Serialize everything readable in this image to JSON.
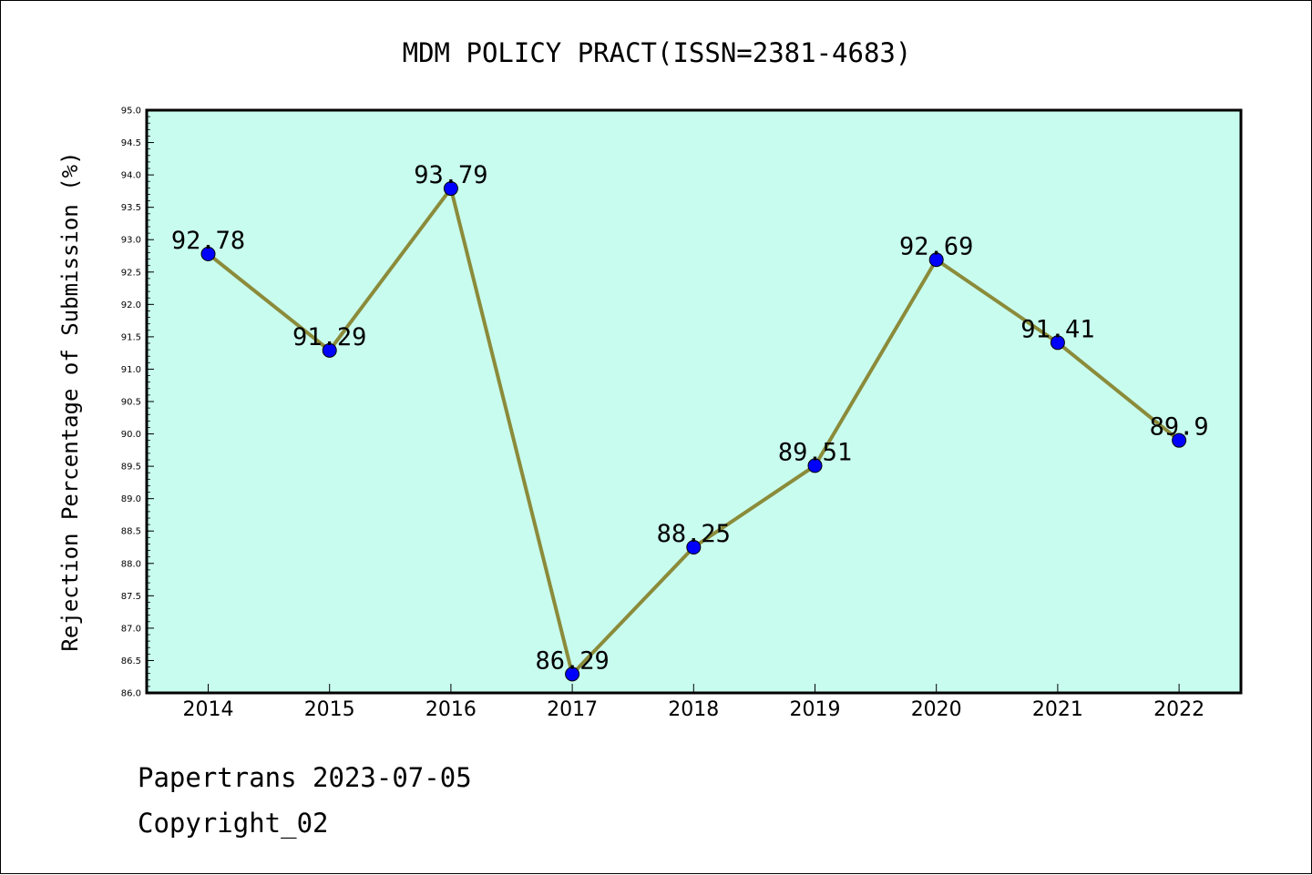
{
  "chart_data": {
    "type": "line",
    "title": "MDM POLICY PRACT(ISSN=2381-4683)",
    "xlabel": "",
    "ylabel": "Rejection Percentage of Submission (%)",
    "categories": [
      "2014",
      "2015",
      "2016",
      "2017",
      "2018",
      "2019",
      "2020",
      "2021",
      "2022"
    ],
    "series": [
      {
        "values": [
          92.78,
          91.29,
          93.79,
          86.29,
          88.25,
          89.51,
          92.69,
          91.41,
          89.9
        ],
        "labels": [
          "92.78",
          "91.29",
          "93.79",
          "86.29",
          "88.25",
          "89.51",
          "92.69",
          "91.41",
          "89.9"
        ]
      }
    ],
    "ylim": [
      86.0,
      95.0
    ],
    "yticks": [
      "86.0",
      "86.5",
      "87.0",
      "87.5",
      "88.0",
      "88.5",
      "89.0",
      "89.5",
      "90.0",
      "90.5",
      "91.0",
      "91.5",
      "92.0",
      "92.5",
      "93.0",
      "93.5",
      "94.0",
      "94.5",
      "95.0"
    ],
    "grid": false,
    "colors": {
      "plot_background": "#c8fcee",
      "line": "#8b8b3a",
      "marker": "#0000ff"
    }
  },
  "footer": {
    "date_text": "Papertrans 2023-07-05",
    "copyright_text": "Copyright_02"
  }
}
